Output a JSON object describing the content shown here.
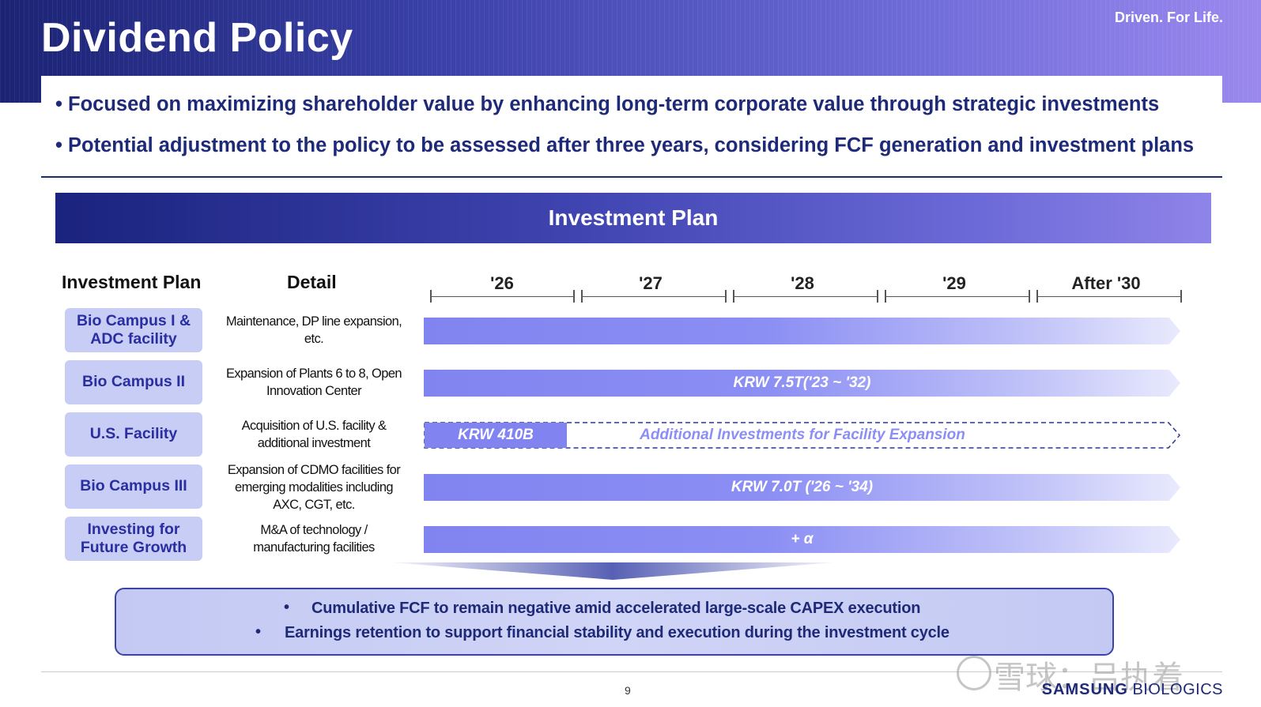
{
  "header": {
    "title": "Dividend Policy",
    "tagline": "Driven. For Life."
  },
  "bullets": [
    "• Focused on maximizing shareholder value by enhancing long-term corporate value through strategic investments",
    "• Potential adjustment to the policy to be assessed after three years, considering FCF generation and investment plans"
  ],
  "banner": {
    "title": "Investment Plan"
  },
  "columns": {
    "plan": "Investment Plan",
    "detail": "Detail"
  },
  "timeline": [
    "'26",
    "'27",
    "'28",
    "'29",
    "After '30"
  ],
  "rows": [
    {
      "plan": "Bio Campus I & ADC facility",
      "detail": "Maintenance, DP line expansion, etc.",
      "bar_label": ""
    },
    {
      "plan": "Bio Campus II",
      "detail": "Expansion of Plants 6 to 8, Open Innovation Center",
      "bar_label": "KRW 7.5T('23 ~ '32)"
    },
    {
      "plan": "U.S. Facility",
      "detail": "Acquisition of U.S. facility & additional investment",
      "bar_label": "KRW 410B",
      "bar_extra": "Additional Investments for Facility Expansion"
    },
    {
      "plan": "Bio Campus III",
      "detail": "Expansion of CDMO facilities for emerging modalities including AXC, CGT, etc.",
      "bar_label": "KRW 7.0T ('26 ~ '34)"
    },
    {
      "plan": "Investing for Future Growth",
      "detail": "M&A of technology / manufacturing facilities",
      "bar_label": "+ α"
    }
  ],
  "summary": [
    "Cumulative FCF to remain negative amid accelerated large-scale CAPEX execution",
    "Earnings retention to support financial stability and execution during the investment cycle"
  ],
  "footer": {
    "page": "9",
    "watermark": "雪球：吕执着",
    "brand_bold": "SAMSUNG",
    "brand_light": "BIOLOGICS"
  },
  "colors": {
    "navy": "#1e2a78",
    "bar": "#8184f0",
    "box": "#c7cdf5"
  }
}
